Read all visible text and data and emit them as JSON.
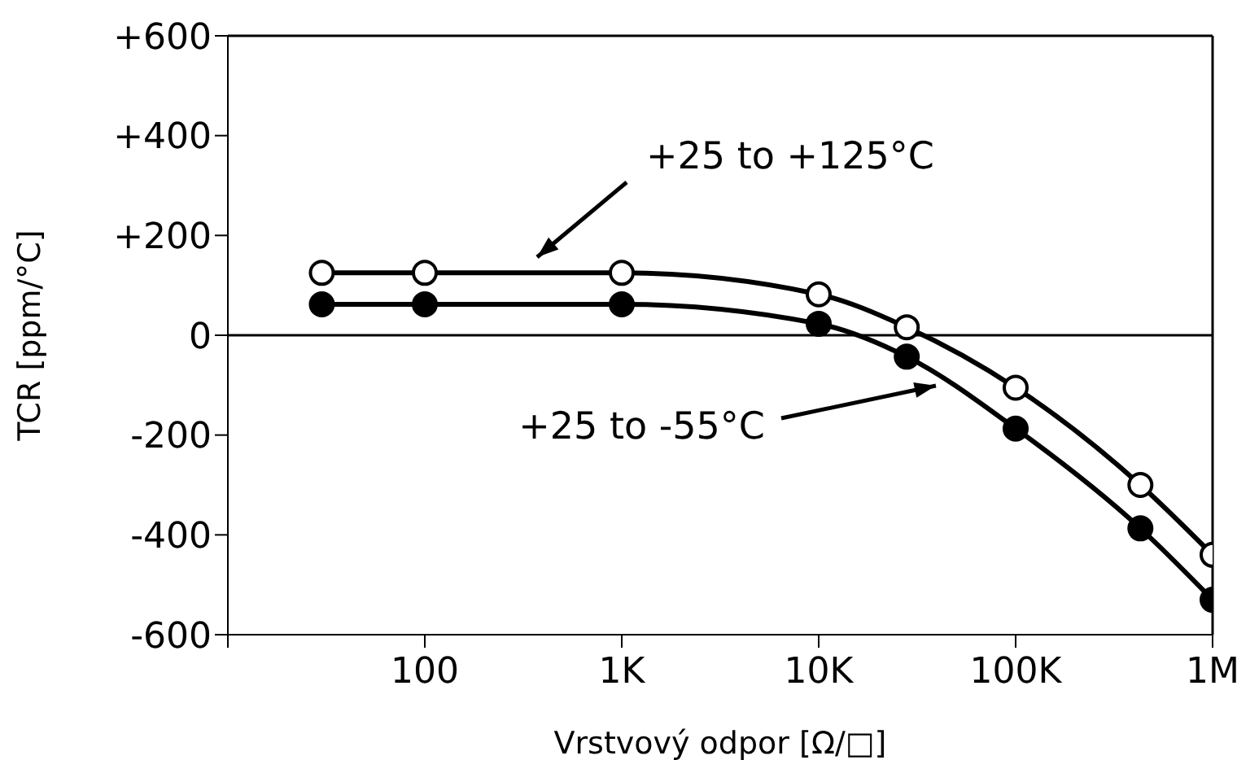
{
  "chart_data": {
    "type": "line",
    "xlabel": "Vrstvový odpor [Ω/□]",
    "ylabel": "TCR [ppm/°C]",
    "log": "x",
    "xlim": [
      10,
      1000000
    ],
    "xticks": [
      {
        "value": 10,
        "label": null
      },
      {
        "value": 100,
        "label": "100"
      },
      {
        "value": 1000,
        "label": "1K"
      },
      {
        "value": 10000,
        "label": "10K"
      },
      {
        "value": 100000,
        "label": "100K"
      },
      {
        "value": 1000000,
        "label": "1M"
      }
    ],
    "ylim": [
      -600,
      600
    ],
    "yticks": [
      {
        "value": -600,
        "label": "-600"
      },
      {
        "value": -400,
        "label": "-400"
      },
      {
        "value": -200,
        "label": "-200"
      },
      0,
      {
        "value": 200,
        "label": "+200"
      },
      {
        "value": 400,
        "label": "+400"
      },
      {
        "value": 600,
        "label": "+600"
      }
    ],
    "series": [
      {
        "color": "#000000",
        "x": [
          30,
          100,
          1000,
          10000,
          28000,
          100000,
          430000,
          1000000
        ],
        "values": [
          125,
          125,
          125,
          82,
          16,
          -105,
          -300,
          -440
        ]
      },
      {
        "color": "#000000",
        "x": [
          30,
          100,
          1000,
          10000,
          28000,
          100000,
          430000,
          1000000
        ],
        "values": [
          62,
          62,
          62,
          23,
          -43,
          -187,
          -387,
          -530
        ]
      }
    ],
    "marker": "circle",
    "grid": false,
    "legend": false,
    "ref_lines": [
      {
        "axis": "y",
        "value": 0,
        "color": "#000000"
      }
    ],
    "annotations": [
      "+25 to +125°C",
      "+25 to -55°C"
    ]
  }
}
